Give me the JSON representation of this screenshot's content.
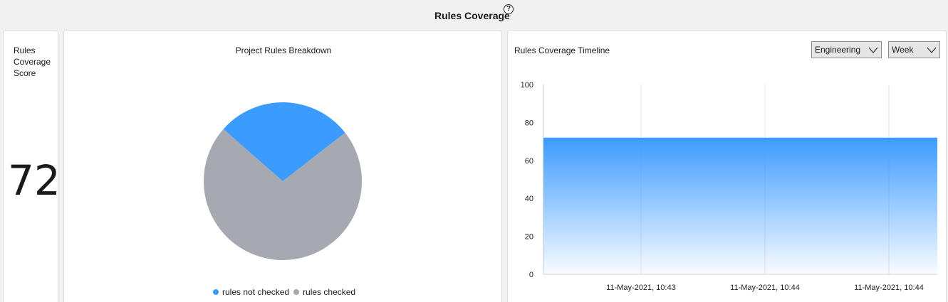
{
  "header": {
    "title": "Rules Coverage",
    "help_icon": "?"
  },
  "score_card": {
    "label": "Rules Coverage Score",
    "value": "72"
  },
  "pie_card": {
    "title": "Project Rules Breakdown",
    "legend": [
      {
        "label": "rules not checked",
        "color": "#3b9bff"
      },
      {
        "label": "rules checked",
        "color": "#a6a8b2"
      }
    ]
  },
  "timeline_card": {
    "title": "Rules Coverage Timeline",
    "team_select": "Engineering",
    "period_select": "Week"
  },
  "chart_data": [
    {
      "type": "pie",
      "title": "Project Rules Breakdown",
      "labels": [
        "rules not checked",
        "rules checked"
      ],
      "values": [
        28,
        72
      ],
      "colors": [
        "#3b9bff",
        "#a6a8b2"
      ]
    },
    {
      "type": "area",
      "title": "Rules Coverage Timeline",
      "x_ticks": [
        "11-May-2021, 10:43",
        "11-May-2021, 10:44",
        "11-May-2021, 10:44"
      ],
      "y_ticks": [
        "0",
        "20",
        "40",
        "60",
        "80",
        "100"
      ],
      "ylim": [
        0,
        100
      ],
      "series": [
        {
          "values": [
            72,
            72
          ]
        }
      ],
      "grid": "vertical",
      "color": "#3b9bff"
    }
  ]
}
